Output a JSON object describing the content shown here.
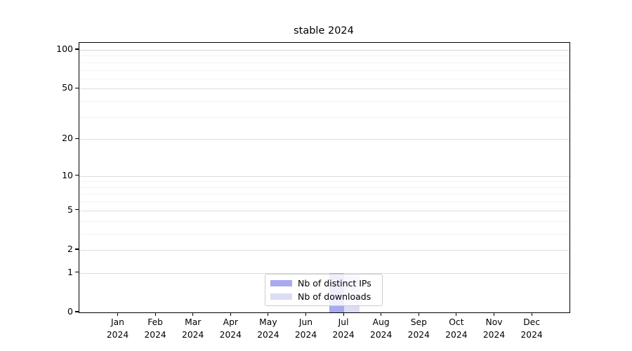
{
  "chart_data": {
    "type": "bar",
    "title": "stable 2024",
    "categories": [
      "Jan 2024",
      "Feb 2024",
      "Mar 2024",
      "Apr 2024",
      "May 2024",
      "Jun 2024",
      "Jul 2024",
      "Aug 2024",
      "Sep 2024",
      "Oct 2024",
      "Nov 2024",
      "Dec 2024"
    ],
    "series": [
      {
        "name": "Nb of distinct IPs",
        "color": "#a9a9ee",
        "values": [
          0,
          0,
          0,
          0,
          0,
          0,
          1,
          0,
          0,
          0,
          0,
          0
        ]
      },
      {
        "name": "Nb of downloads",
        "color": "#dcdcf5",
        "values": [
          0,
          0,
          0,
          0,
          0,
          0,
          1,
          0,
          0,
          0,
          0,
          0
        ]
      }
    ],
    "yticks": [
      0,
      1,
      2,
      5,
      10,
      20,
      50,
      100
    ],
    "minor_yticks": [
      3,
      4,
      6,
      7,
      8,
      9,
      30,
      40,
      60,
      70,
      80,
      90
    ],
    "ylim": [
      0,
      100
    ],
    "scale": "log1p",
    "grid": "on",
    "legend_position": "lower center",
    "colors": {
      "major_gridline": "#dddddd",
      "top_gridline": "#d4d4d4",
      "minor_gridline": "#f2f2f2",
      "axis": "#000000",
      "legend_border": "#cccccc"
    }
  }
}
